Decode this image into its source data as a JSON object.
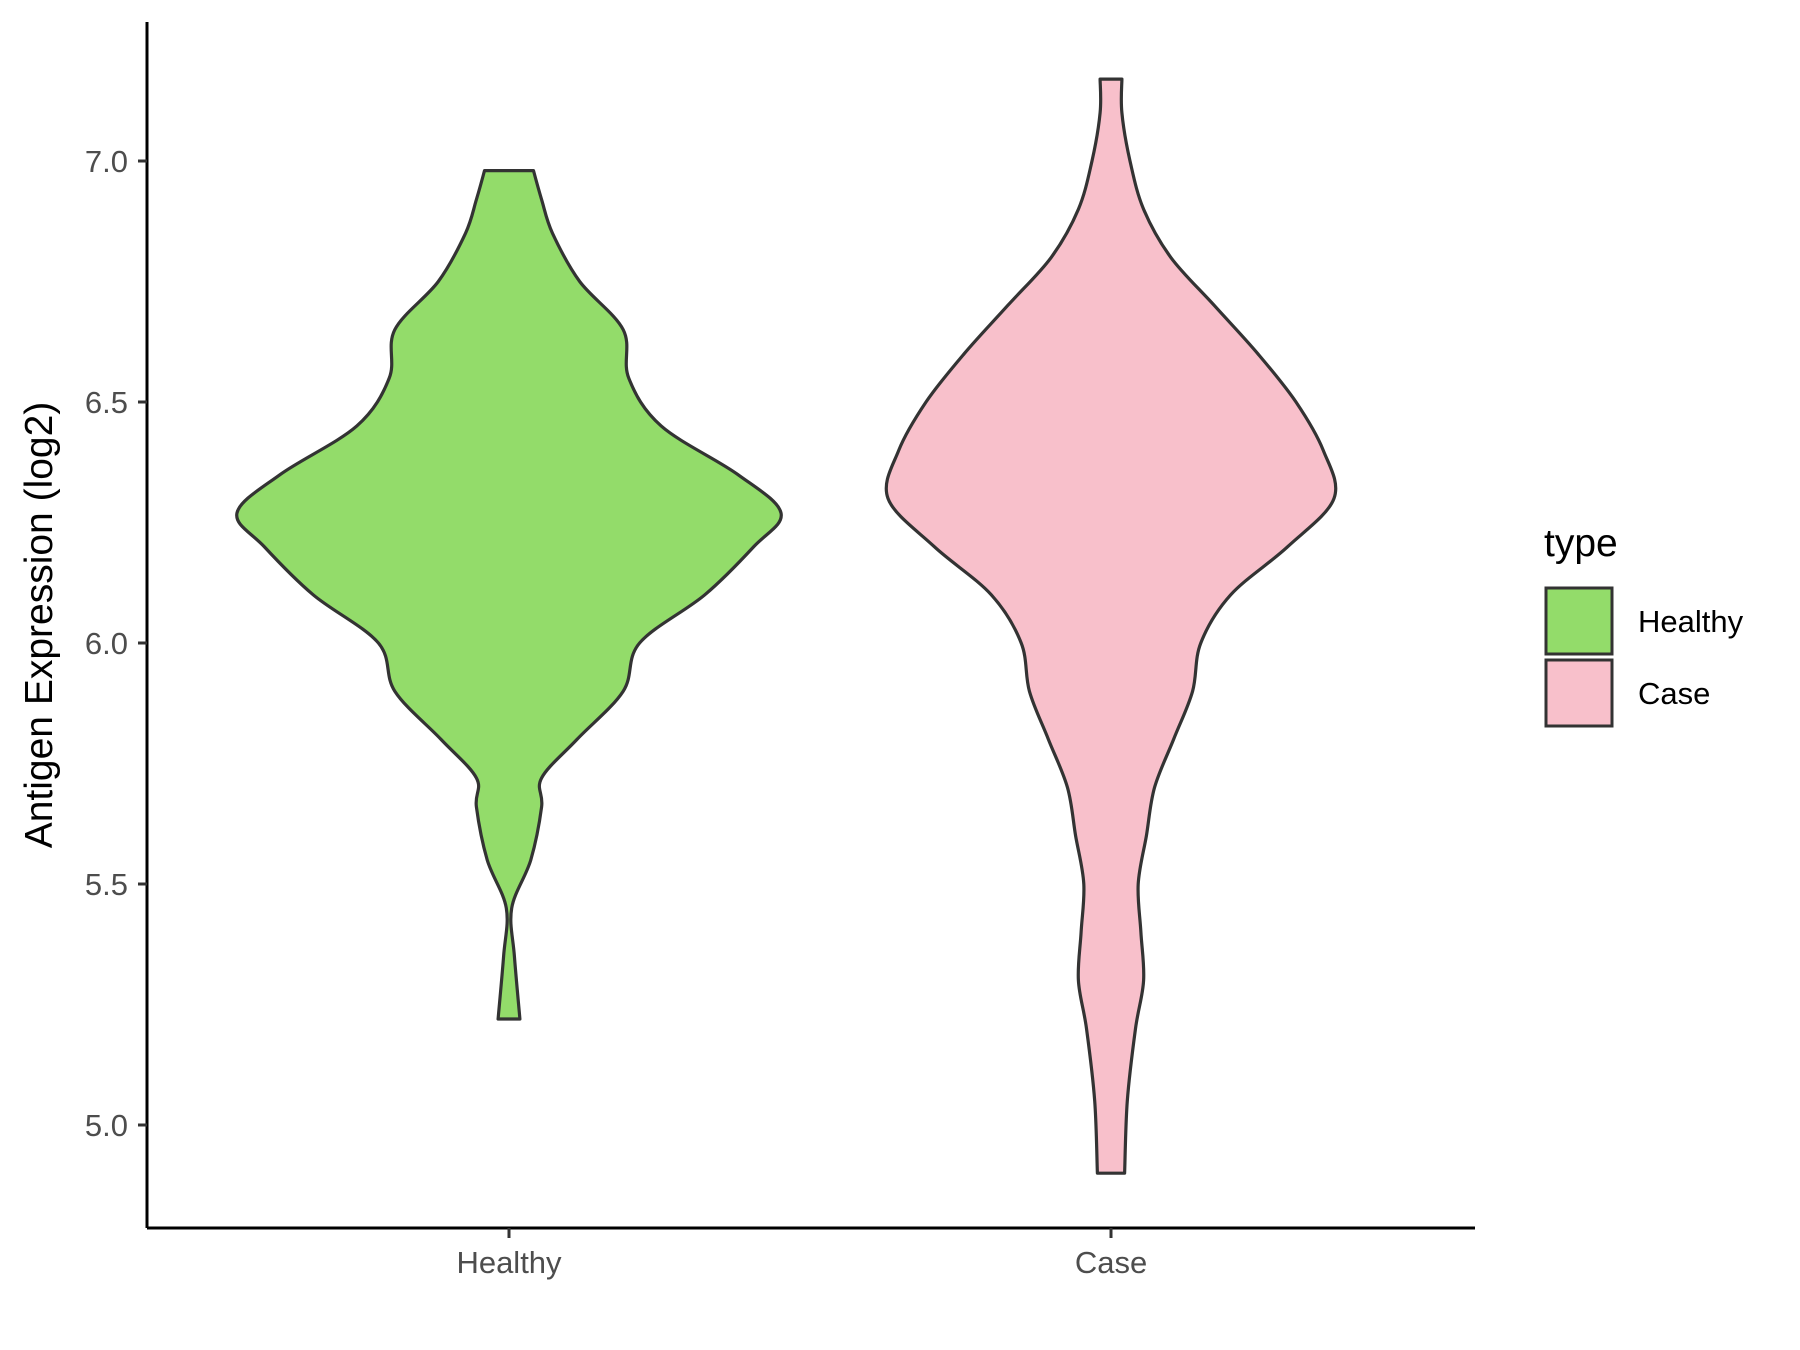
{
  "chart_data": {
    "type": "violin",
    "ylabel": "Antigen Expression (log2)",
    "xlabel": "",
    "categories": [
      "Healthy",
      "Case"
    ],
    "ylim": [
      4.8,
      7.3
    ],
    "yticks": [
      "5.0",
      "5.5",
      "6.0",
      "6.5",
      "7.0"
    ],
    "ytick_values": [
      5.0,
      5.5,
      6.0,
      6.5,
      7.0
    ],
    "grid": false,
    "legend": {
      "title": "type",
      "position": "right",
      "entries": [
        "Healthy",
        "Case"
      ]
    },
    "colors": {
      "Healthy": "#93dc6a",
      "Case": "#f8c0cb",
      "outline": "#333333"
    },
    "series": [
      {
        "name": "Healthy",
        "min": 5.22,
        "max": 6.98,
        "density": [
          [
            5.22,
            0.04
          ],
          [
            5.35,
            0.02
          ],
          [
            5.45,
            0.01
          ],
          [
            5.55,
            0.08
          ],
          [
            5.66,
            0.12
          ],
          [
            5.72,
            0.12
          ],
          [
            5.8,
            0.25
          ],
          [
            5.9,
            0.42
          ],
          [
            6.0,
            0.48
          ],
          [
            6.1,
            0.72
          ],
          [
            6.2,
            0.9
          ],
          [
            6.27,
            1.0
          ],
          [
            6.35,
            0.84
          ],
          [
            6.45,
            0.56
          ],
          [
            6.55,
            0.44
          ],
          [
            6.65,
            0.42
          ],
          [
            6.75,
            0.26
          ],
          [
            6.85,
            0.16
          ],
          [
            6.92,
            0.12
          ],
          [
            6.98,
            0.09
          ]
        ]
      },
      {
        "name": "Case",
        "min": 4.9,
        "max": 7.17,
        "density": [
          [
            4.9,
            0.05
          ],
          [
            5.05,
            0.06
          ],
          [
            5.2,
            0.09
          ],
          [
            5.3,
            0.12
          ],
          [
            5.4,
            0.11
          ],
          [
            5.5,
            0.1
          ],
          [
            5.6,
            0.13
          ],
          [
            5.7,
            0.16
          ],
          [
            5.8,
            0.23
          ],
          [
            5.9,
            0.3
          ],
          [
            6.0,
            0.33
          ],
          [
            6.1,
            0.44
          ],
          [
            6.2,
            0.65
          ],
          [
            6.3,
            0.82
          ],
          [
            6.4,
            0.78
          ],
          [
            6.5,
            0.68
          ],
          [
            6.6,
            0.54
          ],
          [
            6.7,
            0.38
          ],
          [
            6.8,
            0.22
          ],
          [
            6.9,
            0.12
          ],
          [
            7.0,
            0.07
          ],
          [
            7.1,
            0.04
          ],
          [
            7.17,
            0.04
          ]
        ]
      }
    ]
  }
}
